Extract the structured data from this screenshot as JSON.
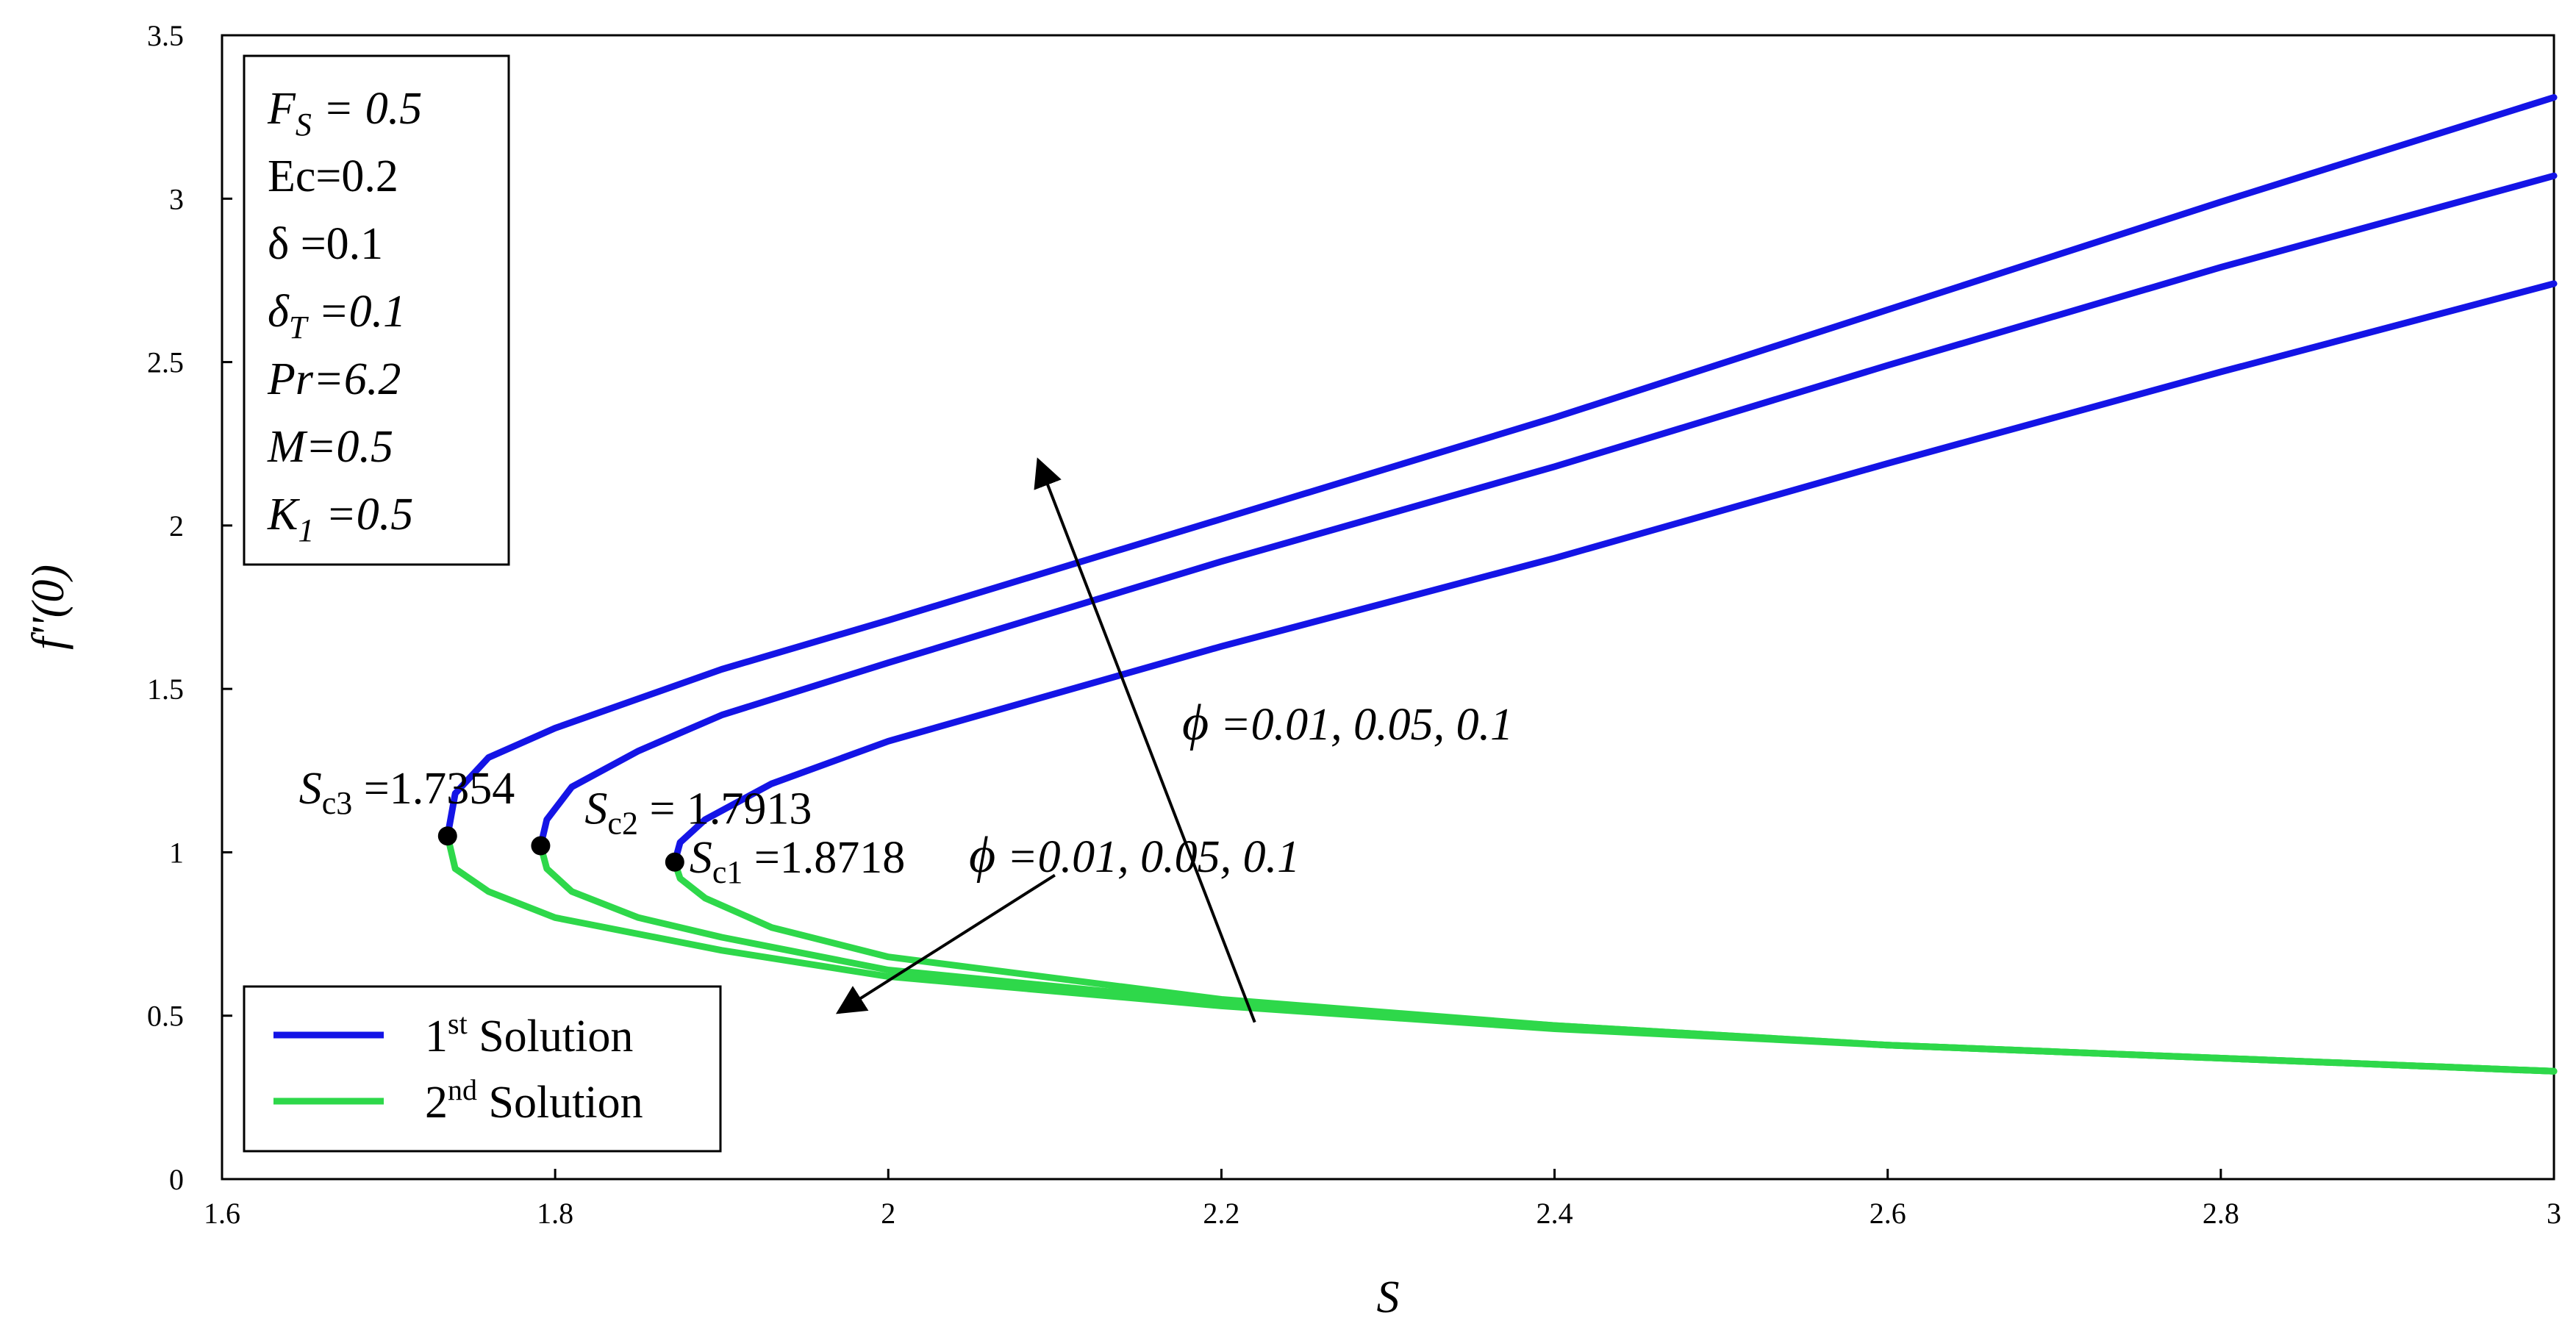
{
  "chart_data": {
    "type": "line",
    "xlabel": "S",
    "ylabel": "f''(0)",
    "xlim": [
      1.6,
      3.0
    ],
    "ylim": [
      0,
      3.5
    ],
    "xticks": [
      "1.6",
      "1.8",
      "2",
      "2.2",
      "2.4",
      "2.6",
      "2.8",
      "3"
    ],
    "yticks": [
      "0",
      "0.5",
      "1",
      "1.5",
      "2",
      "2.5",
      "3",
      "3.5"
    ],
    "grid": false,
    "legend_position": "bottom-left",
    "colors": {
      "first": "#1414e6",
      "second": "#2ed84a",
      "point": "#000000"
    },
    "legend": [
      {
        "base": "1",
        "sup": "st",
        "text": " Solution",
        "color": "#1414e6"
      },
      {
        "base": "2",
        "sup": "nd",
        "text": " Solution",
        "color": "#2ed84a"
      }
    ],
    "parameters": [
      {
        "sym": "F",
        "sub": "S",
        "val": " = 0.5",
        "italic": true
      },
      {
        "sym": "Ec",
        "sub": "",
        "val": "=0.2",
        "italic": false
      },
      {
        "sym": "δ",
        "sub": "",
        "val": " =0.1",
        "italic": false
      },
      {
        "sym": "δ",
        "sub": "T",
        "val": " =0.1",
        "italic": true
      },
      {
        "sym": "Pr",
        "sub": "",
        "val": "=6.2",
        "italic": true
      },
      {
        "sym": "M",
        "sub": "",
        "val": "=0.5",
        "italic": true
      },
      {
        "sym": "K",
        "sub": "1",
        "val": " =0.5",
        "italic": true
      }
    ],
    "critical_points": [
      {
        "label": "S",
        "sub": "c3",
        "value": " =1.7354",
        "x": 1.7354,
        "y": 1.05
      },
      {
        "label": "S",
        "sub": "c2",
        "value": " = 1.7913",
        "x": 1.7913,
        "y": 1.02
      },
      {
        "label": "S",
        "sub": "c1",
        "value": " =1.8718",
        "x": 1.8718,
        "y": 0.97
      }
    ],
    "annotations": [
      {
        "sym": "ϕ",
        "text": " =0.01, 0.05, 0.1",
        "from": [
          2.22,
          0.48
        ],
        "to": [
          2.09,
          2.2
        ]
      },
      {
        "sym": "ϕ",
        "text": " =0.01, 0.05, 0.1",
        "from": [
          2.1,
          0.93
        ],
        "to": [
          1.97,
          0.51
        ]
      }
    ],
    "series": [
      {
        "group": "first",
        "points": [
          [
            1.7354,
            1.05
          ],
          [
            1.74,
            1.18
          ],
          [
            1.76,
            1.29
          ],
          [
            1.8,
            1.38
          ],
          [
            1.9,
            1.56
          ],
          [
            2.0,
            1.71
          ],
          [
            2.2,
            2.02
          ],
          [
            2.4,
            2.33
          ],
          [
            2.6,
            2.66
          ],
          [
            2.8,
            2.99
          ],
          [
            3.0,
            3.31
          ]
        ]
      },
      {
        "group": "first",
        "points": [
          [
            1.7913,
            1.02
          ],
          [
            1.795,
            1.1
          ],
          [
            1.81,
            1.2
          ],
          [
            1.85,
            1.31
          ],
          [
            1.9,
            1.42
          ],
          [
            2.0,
            1.58
          ],
          [
            2.2,
            1.89
          ],
          [
            2.4,
            2.18
          ],
          [
            2.6,
            2.49
          ],
          [
            2.8,
            2.79
          ],
          [
            3.0,
            3.07
          ]
        ]
      },
      {
        "group": "first",
        "points": [
          [
            1.8718,
            0.97
          ],
          [
            1.875,
            1.03
          ],
          [
            1.89,
            1.1
          ],
          [
            1.93,
            1.21
          ],
          [
            2.0,
            1.34
          ],
          [
            2.2,
            1.63
          ],
          [
            2.4,
            1.9
          ],
          [
            2.6,
            2.19
          ],
          [
            2.8,
            2.47
          ],
          [
            3.0,
            2.74
          ]
        ]
      },
      {
        "group": "second",
        "points": [
          [
            1.7354,
            1.05
          ],
          [
            1.74,
            0.95
          ],
          [
            1.76,
            0.88
          ],
          [
            1.8,
            0.8
          ],
          [
            1.9,
            0.7
          ],
          [
            2.0,
            0.62
          ],
          [
            2.2,
            0.53
          ],
          [
            2.4,
            0.46
          ],
          [
            2.6,
            0.41
          ],
          [
            2.8,
            0.37
          ],
          [
            3.0,
            0.33
          ]
        ]
      },
      {
        "group": "second",
        "points": [
          [
            1.7913,
            1.02
          ],
          [
            1.795,
            0.95
          ],
          [
            1.81,
            0.88
          ],
          [
            1.85,
            0.8
          ],
          [
            1.9,
            0.74
          ],
          [
            2.0,
            0.64
          ],
          [
            2.2,
            0.54
          ],
          [
            2.4,
            0.47
          ],
          [
            2.6,
            0.41
          ],
          [
            2.8,
            0.37
          ],
          [
            3.0,
            0.33
          ]
        ]
      },
      {
        "group": "second",
        "points": [
          [
            1.8718,
            0.97
          ],
          [
            1.875,
            0.92
          ],
          [
            1.89,
            0.86
          ],
          [
            1.93,
            0.77
          ],
          [
            2.0,
            0.68
          ],
          [
            2.2,
            0.55
          ],
          [
            2.4,
            0.47
          ],
          [
            2.6,
            0.41
          ],
          [
            2.8,
            0.37
          ],
          [
            3.0,
            0.33
          ]
        ]
      }
    ]
  }
}
